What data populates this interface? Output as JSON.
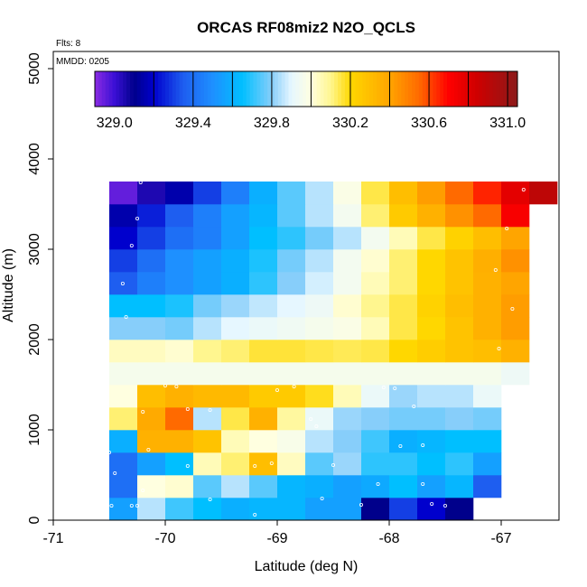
{
  "chart_data": {
    "type": "heatmap",
    "title": "ORCAS RF08miz2 N2O_QCLS",
    "xlabel": "Latitude (deg N)",
    "ylabel": "Altitude (m)",
    "xlim": [
      -71,
      -66.5
    ],
    "ylim": [
      0,
      5200
    ],
    "x_ticks": [
      -71,
      -70,
      -69,
      -68,
      -67
    ],
    "x_tick_labels": [
      "-71",
      "-70",
      "-69",
      "-68",
      "-67"
    ],
    "y_ticks": [
      0,
      1000,
      2000,
      3000,
      4000,
      5000
    ],
    "y_tick_labels": [
      "0",
      "1000",
      "2000",
      "3000",
      "4000",
      "5000"
    ],
    "annotations": {
      "flights": "Flts: 8",
      "date": "MMDD: 0205"
    },
    "colorbar": {
      "min": 328.9,
      "max": 331.05,
      "ticks": [
        329.0,
        329.4,
        329.8,
        330.2,
        330.6,
        331.0
      ],
      "tick_labels": [
        "329.0",
        "329.4",
        "329.8",
        "330.2",
        "330.6",
        "331.0"
      ],
      "boundaries": [
        329.2,
        329.4,
        329.6,
        329.8,
        330.0,
        330.2,
        330.4,
        330.6,
        330.8,
        331.0
      ]
    },
    "colormap": [
      [
        328.9,
        "#8a2be2"
      ],
      [
        329.0,
        "#3b10d6"
      ],
      [
        329.1,
        "#00008b"
      ],
      [
        329.2,
        "#0000cd"
      ],
      [
        329.35,
        "#1e5ef0"
      ],
      [
        329.5,
        "#1e90ff"
      ],
      [
        329.65,
        "#00bfff"
      ],
      [
        329.8,
        "#87cefa"
      ],
      [
        329.9,
        "#e6f7ff"
      ],
      [
        330.0,
        "#ffffe0"
      ],
      [
        330.1,
        "#fff68f"
      ],
      [
        330.2,
        "#ffd700"
      ],
      [
        330.4,
        "#ffa500"
      ],
      [
        330.55,
        "#ff6a00"
      ],
      [
        330.7,
        "#ff0000"
      ],
      [
        330.85,
        "#cd0000"
      ],
      [
        331.05,
        "#8b1a1a"
      ]
    ],
    "cell": {
      "lat_width": 0.25,
      "alt_height": 250
    },
    "lat_starts": [
      -70.5,
      -70.25,
      -70.0,
      -69.75,
      -69.5,
      -69.25,
      -69.0,
      -68.75,
      -68.5,
      -68.25,
      -68.0,
      -67.75,
      -67.5,
      -67.25,
      -67.0
    ],
    "alt_starts": [
      0,
      250,
      500,
      750,
      1000,
      1250,
      1500,
      1750,
      2000,
      2250,
      2500,
      2750,
      3000,
      3250,
      3500
    ],
    "cell_values": [
      [
        329.55,
        329.85,
        329.72,
        329.65,
        329.6,
        329.62,
        329.62,
        329.55,
        329.55,
        329.1,
        329.3,
        329.2,
        329.1,
        null,
        null
      ],
      [
        329.4,
        330.0,
        330.02,
        329.75,
        329.85,
        329.75,
        329.62,
        329.6,
        329.55,
        329.58,
        329.65,
        329.55,
        329.62,
        329.35,
        null
      ],
      [
        329.4,
        329.55,
        329.65,
        330.05,
        330.12,
        330.3,
        330.04,
        329.75,
        329.82,
        329.7,
        329.7,
        329.65,
        329.7,
        329.55,
        null
      ],
      [
        329.6,
        330.35,
        330.35,
        330.28,
        330.05,
        330.0,
        329.97,
        329.85,
        329.8,
        329.72,
        329.6,
        329.62,
        329.65,
        329.65,
        null
      ],
      [
        330.12,
        330.38,
        330.55,
        329.85,
        330.15,
        330.35,
        330.08,
        329.92,
        329.82,
        329.8,
        329.78,
        329.78,
        329.8,
        329.78,
        null
      ],
      [
        330.0,
        330.3,
        330.35,
        330.32,
        330.32,
        330.25,
        330.25,
        330.18,
        330.05,
        329.92,
        329.82,
        329.85,
        329.85,
        329.92,
        null
      ],
      [
        329.96,
        329.96,
        329.96,
        329.96,
        329.96,
        329.96,
        329.96,
        329.96,
        329.96,
        329.96,
        329.96,
        329.96,
        329.96,
        329.96,
        329.93
      ],
      [
        330.04,
        330.04,
        330.02,
        330.1,
        330.12,
        330.16,
        330.16,
        330.15,
        330.14,
        330.15,
        330.2,
        330.24,
        330.28,
        330.3,
        330.35
      ],
      [
        329.8,
        329.8,
        329.78,
        329.85,
        329.9,
        329.92,
        329.94,
        329.96,
        329.98,
        330.05,
        330.15,
        330.2,
        330.28,
        330.35,
        330.42
      ],
      [
        329.65,
        329.65,
        329.68,
        329.78,
        329.82,
        329.86,
        329.9,
        329.93,
        330.02,
        330.1,
        330.15,
        330.22,
        330.3,
        330.35,
        330.42
      ],
      [
        329.35,
        329.45,
        329.5,
        329.55,
        329.6,
        329.7,
        329.8,
        329.88,
        329.95,
        330.05,
        330.12,
        330.2,
        330.28,
        330.35,
        330.4
      ],
      [
        329.3,
        329.4,
        329.5,
        329.55,
        329.6,
        329.68,
        329.78,
        329.85,
        329.95,
        330.02,
        330.12,
        330.2,
        330.28,
        330.36,
        330.45
      ],
      [
        329.2,
        329.3,
        329.4,
        329.45,
        329.55,
        329.65,
        329.7,
        329.78,
        329.85,
        329.95,
        330.05,
        330.15,
        330.22,
        330.3,
        330.4
      ],
      [
        329.15,
        329.25,
        329.35,
        329.45,
        329.55,
        329.62,
        329.75,
        329.85,
        329.95,
        330.12,
        330.25,
        330.35,
        330.45,
        330.55,
        330.72
      ],
      [
        328.95,
        329.05,
        329.15,
        329.3,
        329.45,
        329.6,
        329.75,
        329.85,
        329.98,
        330.15,
        330.3,
        330.42,
        330.55,
        330.65,
        330.78,
        330.9
      ]
    ],
    "last_row_extra_lat_start": -66.75,
    "sample_points": [
      [
        -70.48,
        160
      ],
      [
        -70.3,
        160
      ],
      [
        -70.25,
        160
      ],
      [
        -70.2,
        330
      ],
      [
        -69.6,
        230
      ],
      [
        -69.2,
        60
      ],
      [
        -68.6,
        240
      ],
      [
        -68.25,
        170
      ],
      [
        -68.1,
        400
      ],
      [
        -67.7,
        400
      ],
      [
        -67.62,
        180
      ],
      [
        -67.5,
        160
      ],
      [
        -70.45,
        520
      ],
      [
        -70.15,
        780
      ],
      [
        -69.8,
        600
      ],
      [
        -69.05,
        630
      ],
      [
        -69.2,
        600
      ],
      [
        -68.5,
        610
      ],
      [
        -67.7,
        830
      ],
      [
        -67.9,
        820
      ],
      [
        -70.5,
        750
      ],
      [
        -70.2,
        1200
      ],
      [
        -70.0,
        1490
      ],
      [
        -69.9,
        1480
      ],
      [
        -69.8,
        1230
      ],
      [
        -69.6,
        1220
      ],
      [
        -69.0,
        1440
      ],
      [
        -68.85,
        1480
      ],
      [
        -68.7,
        1120
      ],
      [
        -68.65,
        1040
      ],
      [
        -68.05,
        1470
      ],
      [
        -67.95,
        1460
      ],
      [
        -67.78,
        1260
      ],
      [
        -70.35,
        2250
      ],
      [
        -66.9,
        2340
      ],
      [
        -67.02,
        1900
      ],
      [
        -70.38,
        2620
      ],
      [
        -70.3,
        3040
      ],
      [
        -70.25,
        3340
      ],
      [
        -70.22,
        3740
      ],
      [
        -66.8,
        3660
      ],
      [
        -66.95,
        3230
      ],
      [
        -67.05,
        2770
      ]
    ]
  }
}
